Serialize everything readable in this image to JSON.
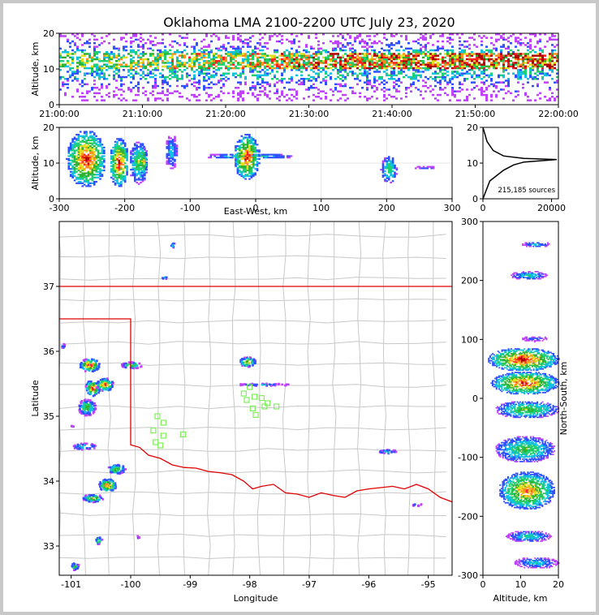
{
  "chart_data": [
    {
      "type": "heatmap",
      "panel": "altitude-time",
      "title": "Oklahoma LMA 2100-2200 UTC July 23, 2020",
      "xlabel": "",
      "ylabel": "Altitude, km",
      "x_ticks": [
        "21:00:00",
        "21:10:00",
        "21:20:00",
        "21:30:00",
        "21:40:00",
        "21:50:00",
        "22:00:00"
      ],
      "y_ticks": [
        0,
        10,
        20
      ],
      "ylim": [
        0,
        20
      ],
      "description_values": {
        "dense_band_altitude_km": [
          7,
          15
        ],
        "peak_band_altitude_km": [
          10,
          14
        ]
      }
    },
    {
      "type": "heatmap",
      "panel": "altitude-eastwest",
      "xlabel": "East-West, km",
      "ylabel": "Altitude, km",
      "xlim": [
        -300,
        300
      ],
      "ylim": [
        0,
        20
      ],
      "x_ticks": [
        -300,
        -200,
        -100,
        0,
        100,
        200,
        300
      ],
      "y_ticks": [
        0,
        10,
        20
      ],
      "cells": [
        {
          "x": [
            -290,
            -230
          ],
          "y": [
            3,
            19
          ],
          "peak": 1.0
        },
        {
          "x": [
            -225,
            -195
          ],
          "y": [
            3,
            17
          ],
          "peak": 0.95
        },
        {
          "x": [
            -195,
            -165
          ],
          "y": [
            4,
            16
          ],
          "peak": 0.55
        },
        {
          "x": [
            -178,
            -168
          ],
          "y": [
            6,
            15
          ],
          "peak": 0.8
        },
        {
          "x": [
            -140,
            -120
          ],
          "y": [
            8,
            18
          ],
          "peak": 0.35
        },
        {
          "x": [
            -85,
            60
          ],
          "y": [
            11,
            12.5
          ],
          "peak": 0.45
        },
        {
          "x": [
            -35,
            5
          ],
          "y": [
            5,
            18
          ],
          "peak": 0.95
        },
        {
          "x": [
            190,
            215
          ],
          "y": [
            4,
            12
          ],
          "peak": 0.5
        },
        {
          "x": [
            240,
            275
          ],
          "y": [
            8,
            9
          ],
          "peak": 0.2
        }
      ]
    },
    {
      "type": "line",
      "panel": "altitude-histogram",
      "annotation": "215,185 sources",
      "x_ticks": [
        0,
        20000
      ],
      "y_ticks": [
        0,
        10,
        20
      ],
      "xlim": [
        0,
        22000
      ],
      "ylim": [
        0,
        20
      ],
      "profile": [
        [
          0,
          0
        ],
        [
          2000,
          5
        ],
        [
          6000,
          8
        ],
        [
          9000,
          9.5
        ],
        [
          12000,
          10.3
        ],
        [
          21500,
          11
        ],
        [
          12000,
          11.3
        ],
        [
          6000,
          12
        ],
        [
          3000,
          13.5
        ],
        [
          1200,
          16
        ],
        [
          300,
          19
        ],
        [
          0,
          20
        ]
      ]
    },
    {
      "type": "heatmap",
      "panel": "plan-view",
      "xlabel": "Longitude",
      "ylabel": "Latitude",
      "xlim": [
        -101.2,
        -94.6
      ],
      "ylim": [
        32.55,
        38.0
      ],
      "x_ticks": [
        -101,
        -100,
        -99,
        -98,
        -97,
        -96,
        -95
      ],
      "y_ticks": [
        33,
        34,
        35,
        36,
        37
      ],
      "cells": [
        {
          "lon": -100.7,
          "lat": 35.8,
          "peak": 1.0,
          "w": 0.35,
          "h": 0.2
        },
        {
          "lon": -100.65,
          "lat": 35.45,
          "peak": 1.0,
          "w": 0.25,
          "h": 0.25
        },
        {
          "lon": -100.45,
          "lat": 35.5,
          "peak": 0.9,
          "w": 0.3,
          "h": 0.2
        },
        {
          "lon": -100.75,
          "lat": 35.15,
          "peak": 0.6,
          "w": 0.3,
          "h": 0.25
        },
        {
          "lon": -100.0,
          "lat": 35.8,
          "peak": 0.6,
          "w": 0.35,
          "h": 0.1
        },
        {
          "lon": -98.05,
          "lat": 35.85,
          "peak": 0.75,
          "w": 0.3,
          "h": 0.15
        },
        {
          "lon": -97.8,
          "lat": 35.5,
          "peak": 0.3,
          "w": 0.9,
          "h": 0.04
        },
        {
          "lon": -100.8,
          "lat": 34.55,
          "peak": 0.5,
          "w": 0.4,
          "h": 0.1
        },
        {
          "lon": -100.4,
          "lat": 33.95,
          "peak": 0.95,
          "w": 0.3,
          "h": 0.2
        },
        {
          "lon": -100.65,
          "lat": 33.75,
          "peak": 0.8,
          "w": 0.35,
          "h": 0.12
        },
        {
          "lon": -100.25,
          "lat": 34.2,
          "peak": 0.7,
          "w": 0.3,
          "h": 0.15
        },
        {
          "lon": -100.55,
          "lat": 33.1,
          "peak": 0.6,
          "w": 0.12,
          "h": 0.12
        },
        {
          "lon": -100.95,
          "lat": 32.7,
          "peak": 0.55,
          "w": 0.15,
          "h": 0.12
        },
        {
          "lon": -99.9,
          "lat": 33.15,
          "peak": 0.3,
          "w": 0.06,
          "h": 0.05
        },
        {
          "lon": -95.7,
          "lat": 34.47,
          "peak": 0.45,
          "w": 0.3,
          "h": 0.06
        },
        {
          "lon": -95.2,
          "lat": 33.65,
          "peak": 0.25,
          "w": 0.2,
          "h": 0.04
        },
        {
          "lon": -99.3,
          "lat": 37.65,
          "peak": 0.4,
          "w": 0.1,
          "h": 0.07
        },
        {
          "lon": -99.45,
          "lat": 37.15,
          "peak": 0.35,
          "w": 0.1,
          "h": 0.06
        },
        {
          "lon": -101.15,
          "lat": 36.1,
          "peak": 0.3,
          "w": 0.06,
          "h": 0.1
        },
        {
          "lon": -101.0,
          "lat": 34.85,
          "peak": 0.2,
          "w": 0.08,
          "h": 0.04
        }
      ],
      "stations": [
        [
          -99.55,
          35.0
        ],
        [
          -99.45,
          34.9
        ],
        [
          -99.62,
          34.78
        ],
        [
          -99.45,
          34.7
        ],
        [
          -99.12,
          34.72
        ],
        [
          -99.58,
          34.6
        ],
        [
          -99.5,
          34.55
        ],
        [
          -98.0,
          35.45
        ],
        [
          -97.92,
          35.3
        ],
        [
          -98.05,
          35.25
        ],
        [
          -98.1,
          35.35
        ],
        [
          -97.8,
          35.28
        ],
        [
          -97.7,
          35.2
        ],
        [
          -97.55,
          35.15
        ],
        [
          -97.95,
          35.12
        ],
        [
          -97.75,
          35.15
        ],
        [
          -97.9,
          35.02
        ]
      ],
      "station_color": "#7ef05a",
      "border_color": "#e00000"
    },
    {
      "type": "heatmap",
      "panel": "northsouth-altitude",
      "xlabel": "Altitude, km",
      "ylabel": "North-South, km",
      "xlim": [
        0,
        20
      ],
      "ylim": [
        -300,
        300
      ],
      "x_ticks": [
        0,
        10,
        20
      ],
      "y_ticks": [
        -300,
        -200,
        -100,
        0,
        100,
        200,
        300
      ],
      "cells": [
        {
          "y": [
            45,
            85
          ],
          "x": [
            1,
            20
          ],
          "peak": 1.0
        },
        {
          "y": [
            5,
            45
          ],
          "x": [
            2,
            20
          ],
          "peak": 0.95
        },
        {
          "y": [
            -35,
            -5
          ],
          "x": [
            3,
            20
          ],
          "peak": 0.6
        },
        {
          "y": [
            -110,
            -65
          ],
          "x": [
            3,
            19
          ],
          "peak": 0.55
        },
        {
          "y": [
            -190,
            -125
          ],
          "x": [
            4,
            19
          ],
          "peak": 0.85
        },
        {
          "y": [
            -245,
            -225
          ],
          "x": [
            6,
            18
          ],
          "peak": 0.4
        },
        {
          "y": [
            -290,
            -270
          ],
          "x": [
            8,
            20
          ],
          "peak": 0.35
        },
        {
          "y": [
            200,
            215
          ],
          "x": [
            7,
            17
          ],
          "peak": 0.4
        },
        {
          "y": [
            255,
            265
          ],
          "x": [
            10,
            18
          ],
          "peak": 0.3
        },
        {
          "y": [
            95,
            105
          ],
          "x": [
            10,
            17
          ],
          "peak": 0.2
        }
      ]
    }
  ]
}
